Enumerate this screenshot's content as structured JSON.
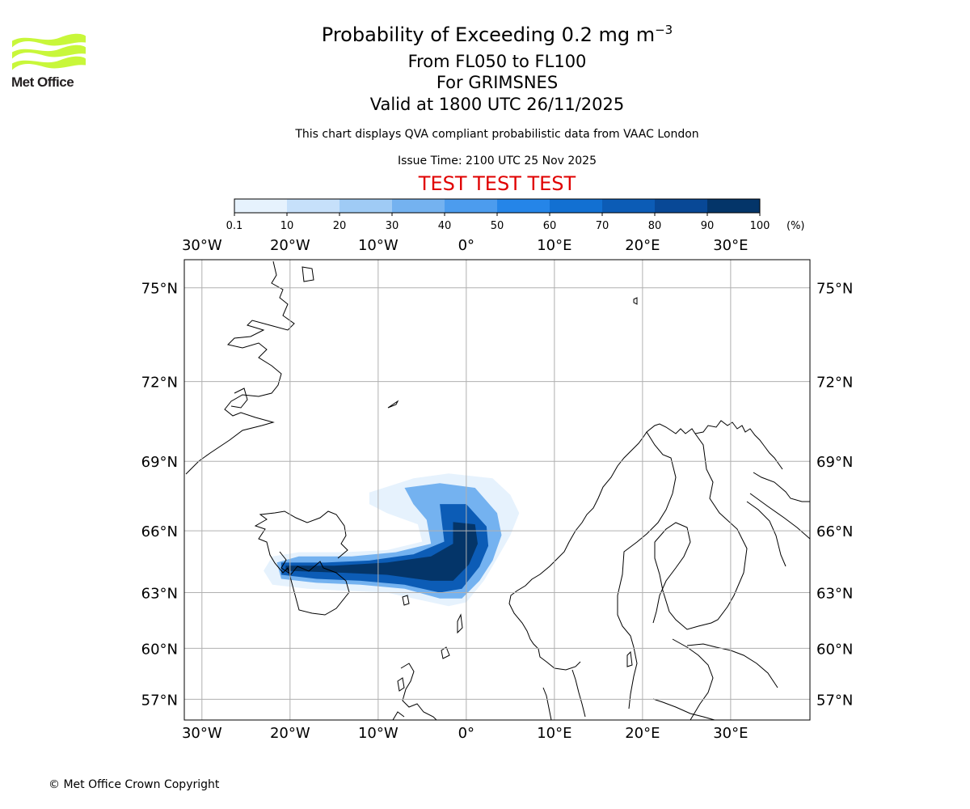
{
  "logo": {
    "name": "Met Office",
    "colors": [
      "#c8f73a",
      "#231f20"
    ]
  },
  "header": {
    "title_main": "Probability of Exceeding 0.2 mg m",
    "title_superscript": "−3",
    "level_range": "From FL050 to FL100",
    "location": "For GRIMSNES",
    "valid_time": "Valid at 1800 UTC 26/11/2025",
    "note": "This chart displays QVA compliant probabilistic data from VAAC London",
    "issue_time": "Issue Time: 2100 UTC 25 Nov 2025",
    "test_banner": "TEST TEST TEST",
    "test_color": "#e00000"
  },
  "colorbar": {
    "ticks": [
      "0.1",
      "10",
      "20",
      "30",
      "40",
      "50",
      "60",
      "70",
      "80",
      "90",
      "100"
    ],
    "unit": "(%)",
    "colors": [
      "#e6f2fd",
      "#c6e0fa",
      "#9fcbf5",
      "#74b2f0",
      "#4c9cee",
      "#2585e8",
      "#1270d2",
      "#0c5cb6",
      "#084896",
      "#043569"
    ]
  },
  "chart_data": {
    "type": "heatmap",
    "title": "Probability of Exceeding 0.2 mg m−3",
    "lon_range": [
      -32,
      39
    ],
    "lat_range": [
      55.7,
      75.8
    ],
    "lon_ticks": [
      "30°W",
      "20°W",
      "10°W",
      "0°",
      "10°E",
      "20°E",
      "30°E"
    ],
    "lon_values": [
      -30,
      -20,
      -10,
      0,
      10,
      20,
      30
    ],
    "lat_ticks": [
      "75°N",
      "72°N",
      "69°N",
      "66°N",
      "63°N",
      "60°N",
      "57°N"
    ],
    "lat_values": [
      75,
      72,
      69,
      66,
      63,
      60,
      57
    ],
    "gridlines": true,
    "ash_cloud_bands": [
      {
        "min_pct": 0.1,
        "polygon": [
          [
            -11,
            67.7
          ],
          [
            -6,
            68.3
          ],
          [
            -2,
            68.5
          ],
          [
            3,
            68.3
          ],
          [
            5,
            67.6
          ],
          [
            6,
            66.8
          ],
          [
            5,
            65.8
          ],
          [
            3.5,
            64.7
          ],
          [
            2,
            63.6
          ],
          [
            0,
            62.5
          ],
          [
            -2,
            62.3
          ],
          [
            -5,
            62.6
          ],
          [
            -9,
            63.0
          ],
          [
            -14,
            63.1
          ],
          [
            -18,
            63.2
          ],
          [
            -22,
            63.4
          ],
          [
            -23,
            64.1
          ],
          [
            -22,
            64.8
          ],
          [
            -19,
            65.0
          ],
          [
            -14,
            65.0
          ],
          [
            -9,
            65.1
          ],
          [
            -5,
            65.5
          ],
          [
            -5.5,
            66.3
          ],
          [
            -9,
            66.8
          ],
          [
            -11,
            67.2
          ]
        ]
      },
      {
        "min_pct": 30,
        "polygon": [
          [
            -7,
            67.9
          ],
          [
            -3,
            68.1
          ],
          [
            1,
            67.9
          ],
          [
            3.5,
            66.8
          ],
          [
            4,
            65.8
          ],
          [
            3,
            64.6
          ],
          [
            1.5,
            63.6
          ],
          [
            -0.5,
            62.7
          ],
          [
            -3,
            62.7
          ],
          [
            -7,
            63.2
          ],
          [
            -12,
            63.4
          ],
          [
            -17,
            63.5
          ],
          [
            -21,
            63.7
          ],
          [
            -21.5,
            64.5
          ],
          [
            -19,
            64.8
          ],
          [
            -13,
            64.8
          ],
          [
            -8,
            65.0
          ],
          [
            -4,
            65.4
          ],
          [
            -4.5,
            66.5
          ],
          [
            -6,
            67.2
          ]
        ]
      },
      {
        "min_pct": 70,
        "polygon": [
          [
            -3,
            67.2
          ],
          [
            0,
            67.2
          ],
          [
            2.3,
            66.2
          ],
          [
            2.5,
            65.3
          ],
          [
            1.5,
            64.3
          ],
          [
            -0.5,
            63.2
          ],
          [
            -3,
            63.0
          ],
          [
            -7,
            63.4
          ],
          [
            -12,
            63.6
          ],
          [
            -17,
            63.7
          ],
          [
            -21,
            63.9
          ],
          [
            -21,
            64.5
          ],
          [
            -16,
            64.5
          ],
          [
            -11,
            64.6
          ],
          [
            -6,
            64.9
          ],
          [
            -2.5,
            65.5
          ],
          [
            -2.8,
            66.5
          ]
        ]
      },
      {
        "min_pct": 90,
        "polygon": [
          [
            -1.5,
            66.4
          ],
          [
            1,
            66.3
          ],
          [
            1.3,
            65.4
          ],
          [
            0.3,
            64.4
          ],
          [
            -1.5,
            63.6
          ],
          [
            -4,
            63.6
          ],
          [
            -9,
            63.9
          ],
          [
            -14,
            64.0
          ],
          [
            -20.5,
            64.1
          ],
          [
            -20.5,
            64.35
          ],
          [
            -15,
            64.35
          ],
          [
            -9,
            64.5
          ],
          [
            -4,
            64.8
          ],
          [
            -1.5,
            65.4
          ]
        ]
      }
    ]
  },
  "footer": {
    "copyright": "© Met Office Crown Copyright"
  }
}
